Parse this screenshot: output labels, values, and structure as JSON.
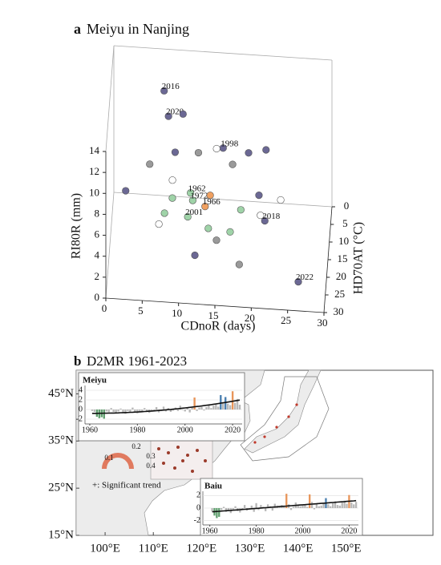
{
  "chart_data": [
    {
      "type": "scatter3d",
      "panel_label": "a",
      "title": "Meiyu in Nanjing",
      "x_label": "CDnoR (days)",
      "y_label": "RI80R (mm)",
      "z_label": "HD70AT (°C)",
      "xlim": [
        0,
        30
      ],
      "ylim": [
        0,
        14
      ],
      "zlim": [
        0,
        30
      ],
      "xticks": [
        0,
        5,
        10,
        15,
        20,
        25,
        30
      ],
      "yticks": [
        0,
        2,
        4,
        6,
        8,
        10,
        12,
        14
      ],
      "zticks": [
        0,
        5,
        10,
        15,
        20,
        25,
        30
      ],
      "points": [
        {
          "x": 7.1,
          "y": 11.7,
          "z": 5,
          "color": "#6b6894",
          "label": "2016",
          "label_color": "#5b5880"
        },
        {
          "x": 7.7,
          "y": 9.3,
          "z": 5,
          "color": "#6b6894",
          "label": "2020",
          "label_color": "#5b5880"
        },
        {
          "x": 9.7,
          "y": 9.6,
          "z": 5,
          "color": "#6b6894"
        },
        {
          "x": 15.4,
          "y": 8.3,
          "z": 10,
          "color": "#6b6894",
          "label": "1998",
          "label_color": "#5b5880"
        },
        {
          "x": 14.5,
          "y": 8.2,
          "z": 10,
          "color": "#ffffff"
        },
        {
          "x": 8.8,
          "y": 7.6,
          "z": 10,
          "color": "#6b6894"
        },
        {
          "x": 12.0,
          "y": 7.7,
          "z": 10,
          "color": "#9a9a9a"
        },
        {
          "x": 5.3,
          "y": 6.3,
          "z": 10,
          "color": "#9a9a9a"
        },
        {
          "x": 16.7,
          "y": 6.8,
          "z": 10,
          "color": "#9a9a9a"
        },
        {
          "x": 21.3,
          "y": 8.4,
          "z": 10,
          "color": "#6b6894"
        },
        {
          "x": 18.9,
          "y": 8.0,
          "z": 10,
          "color": "#6b6894"
        },
        {
          "x": 1.7,
          "y": 0.9,
          "z": 2,
          "color": "#6b6894"
        },
        {
          "x": 20.4,
          "y": 4.7,
          "z": 12,
          "color": "#6b6894"
        },
        {
          "x": 8.5,
          "y": 5.6,
          "z": 12,
          "color": "#ffffff"
        },
        {
          "x": 11.1,
          "y": 5.5,
          "z": 15,
          "color": "#9fd3a8",
          "label": "1962",
          "label_color": "#111111"
        },
        {
          "x": 11.4,
          "y": 4.8,
          "z": 15,
          "color": "#9fd3a8",
          "label": "1972",
          "label_color": "#111111"
        },
        {
          "x": 13.8,
          "y": 5.4,
          "z": 15,
          "color": "#f0a060"
        },
        {
          "x": 13.1,
          "y": 4.3,
          "z": 15,
          "color": "#f0a060",
          "label": "1966",
          "label_color": "#111111"
        },
        {
          "x": 8.6,
          "y": 4.9,
          "z": 15,
          "color": "#9fd3a8"
        },
        {
          "x": 23.5,
          "y": 5.4,
          "z": 15,
          "color": "#ffffff"
        },
        {
          "x": 10.9,
          "y": 4.9,
          "z": 20,
          "color": "#9fd3a8",
          "label": "2001",
          "label_color": "#c0392b"
        },
        {
          "x": 21.5,
          "y": 5.0,
          "z": 20,
          "color": "#6b6894",
          "label": "2018",
          "label_color": "#c0392b"
        },
        {
          "x": 18.2,
          "y": 5.9,
          "z": 20,
          "color": "#9fd3a8"
        },
        {
          "x": 7.7,
          "y": 5.1,
          "z": 20,
          "color": "#9fd3a8"
        },
        {
          "x": 20.9,
          "y": 5.5,
          "z": 20,
          "color": "#ffffff"
        },
        {
          "x": 16.8,
          "y": 4.4,
          "z": 22,
          "color": "#9fd3a8"
        },
        {
          "x": 13.8,
          "y": 4.6,
          "z": 22,
          "color": "#9fd3a8"
        },
        {
          "x": 7.0,
          "y": 4.7,
          "z": 22,
          "color": "#ffffff"
        },
        {
          "x": 15.0,
          "y": 4.2,
          "z": 24,
          "color": "#9a9a9a"
        },
        {
          "x": 12.1,
          "y": 3.3,
          "z": 26,
          "color": "#6b6894"
        },
        {
          "x": 18.2,
          "y": 2.7,
          "z": 26,
          "color": "#9a9a9a"
        },
        {
          "x": 26.4,
          "y": 2.1,
          "z": 28,
          "color": "#6b6894",
          "label": "2022",
          "label_color": "#c0392b"
        }
      ]
    },
    {
      "type": "map",
      "panel_label": "b",
      "title": "D2MR 1961-2023",
      "xlim": [
        94,
        168
      ],
      "ylim": [
        15,
        50
      ],
      "xticks": [
        {
          "value": 100,
          "label": "100°E"
        },
        {
          "value": 110,
          "label": "110°E"
        },
        {
          "value": 120,
          "label": "120°E"
        },
        {
          "value": 130,
          "label": "130°E"
        },
        {
          "value": 140,
          "label": "140°E"
        },
        {
          "value": 150,
          "label": "150°E"
        }
      ],
      "yticks": [
        {
          "value": 15,
          "label": "15°N"
        },
        {
          "value": 25,
          "label": "25°N"
        },
        {
          "value": 35,
          "label": "35°N"
        },
        {
          "value": 45,
          "label": "45°N"
        }
      ],
      "note": "+: Significant trend",
      "colorbar_ticks": [
        0.1,
        0.2,
        0.3,
        0.4
      ],
      "palette": {
        "gray": "#b8b8b8",
        "green": "#5f9e6e",
        "orange": "#e8955a",
        "blue": "#4a7fb0"
      },
      "insets": [
        {
          "type": "bar",
          "name": "Meiyu",
          "trend": "quadratic",
          "xlim": [
            1958,
            2024
          ],
          "ylim": [
            -3,
            5
          ],
          "xticks": [
            1960,
            1980,
            2000,
            2020
          ],
          "yticks": [
            -2,
            0,
            2,
            4
          ],
          "x": [
            1961,
            1962,
            1963,
            1964,
            1965,
            1966,
            1967,
            1968,
            1969,
            1970,
            1971,
            1972,
            1973,
            1974,
            1975,
            1976,
            1977,
            1978,
            1979,
            1980,
            1981,
            1982,
            1983,
            1984,
            1985,
            1986,
            1987,
            1988,
            1989,
            1990,
            1991,
            1992,
            1993,
            1994,
            1995,
            1996,
            1997,
            1998,
            1999,
            2000,
            2001,
            2002,
            2003,
            2004,
            2005,
            2006,
            2007,
            2008,
            2009,
            2010,
            2011,
            2012,
            2013,
            2014,
            2015,
            2016,
            2017,
            2018,
            2019,
            2020,
            2021,
            2022,
            2023
          ],
          "values": [
            -0.3,
            -0.5,
            -1.5,
            -1.8,
            -1.6,
            -1.9,
            -0.4,
            -0.6,
            0.3,
            -0.5,
            -0.8,
            -0.4,
            0.2,
            -0.6,
            -0.9,
            -0.3,
            -0.7,
            0.4,
            -0.5,
            -0.8,
            -0.4,
            -0.6,
            0.3,
            -0.5,
            -0.7,
            -0.2,
            -0.4,
            0.5,
            -0.6,
            -0.3,
            0.6,
            -0.4,
            0.3,
            -0.5,
            -0.2,
            0.4,
            -0.3,
            0.8,
            -0.1,
            -0.4,
            0.5,
            -0.6,
            0.7,
            2.5,
            -0.3,
            0.4,
            0.6,
            -0.2,
            0.5,
            1.0,
            0.3,
            0.8,
            1.2,
            0.6,
            3.0,
            1.5,
            2.6,
            1.2,
            0.9,
            3.8,
            1.4,
            2.2,
            1.0
          ],
          "bar_colors": [
            "gray",
            "gray",
            "green",
            "green",
            "green",
            "green",
            "gray",
            "gray",
            "gray",
            "gray",
            "gray",
            "gray",
            "gray",
            "gray",
            "gray",
            "gray",
            "gray",
            "gray",
            "gray",
            "gray",
            "gray",
            "gray",
            "gray",
            "gray",
            "gray",
            "gray",
            "gray",
            "gray",
            "gray",
            "gray",
            "gray",
            "gray",
            "gray",
            "gray",
            "gray",
            "gray",
            "gray",
            "gray",
            "gray",
            "gray",
            "gray",
            "gray",
            "gray",
            "orange",
            "gray",
            "gray",
            "gray",
            "gray",
            "gray",
            "gray",
            "gray",
            "gray",
            "gray",
            "gray",
            "blue",
            "gray",
            "blue",
            "gray",
            "gray",
            "orange",
            "gray",
            "gray",
            "gray"
          ]
        },
        {
          "type": "bar",
          "name": "Baiu",
          "trend": "linear",
          "xlim": [
            1957,
            2024
          ],
          "ylim": [
            -2.7,
            2.7
          ],
          "xticks": [
            1960,
            1980,
            2000,
            2020
          ],
          "yticks": [
            -2,
            0,
            2
          ],
          "x": [
            1961,
            1962,
            1963,
            1964,
            1965,
            1966,
            1967,
            1968,
            1969,
            1970,
            1971,
            1972,
            1973,
            1974,
            1975,
            1976,
            1977,
            1978,
            1979,
            1980,
            1981,
            1982,
            1983,
            1984,
            1985,
            1986,
            1987,
            1988,
            1989,
            1990,
            1991,
            1992,
            1993,
            1994,
            1995,
            1996,
            1997,
            1998,
            1999,
            2000,
            2001,
            2002,
            2003,
            2004,
            2005,
            2006,
            2007,
            2008,
            2009,
            2010,
            2011,
            2012,
            2013,
            2014,
            2015,
            2016,
            2017,
            2018,
            2019,
            2020,
            2021,
            2022,
            2023
          ],
          "values": [
            -0.5,
            -1.2,
            -1.6,
            -1.4,
            -0.3,
            0.2,
            -0.6,
            -0.4,
            -0.8,
            -0.2,
            0.3,
            -0.5,
            -0.7,
            -0.3,
            0.5,
            -0.4,
            -0.2,
            0.4,
            -0.6,
            0.8,
            -0.3,
            0.5,
            0.2,
            -0.5,
            0.6,
            0.3,
            -0.4,
            0.7,
            0.4,
            0.2,
            0.5,
            0.4,
            2.3,
            0.6,
            -0.3,
            0.2,
            0.9,
            0.5,
            0.3,
            0.4,
            0.6,
            0.2,
            2.2,
            1.0,
            -0.2,
            0.8,
            0.3,
            0.4,
            0.7,
            1.6,
            0.6,
            0.3,
            0.8,
            1.1,
            0.5,
            0.4,
            0.9,
            1.2,
            0.7,
            2.1,
            0.9,
            0.6,
            1.0
          ],
          "bar_colors": [
            "gray",
            "green",
            "green",
            "green",
            "gray",
            "gray",
            "gray",
            "gray",
            "gray",
            "gray",
            "gray",
            "gray",
            "gray",
            "gray",
            "gray",
            "gray",
            "gray",
            "gray",
            "gray",
            "gray",
            "gray",
            "gray",
            "gray",
            "gray",
            "gray",
            "gray",
            "gray",
            "gray",
            "gray",
            "gray",
            "gray",
            "gray",
            "orange",
            "gray",
            "gray",
            "gray",
            "gray",
            "gray",
            "gray",
            "gray",
            "gray",
            "gray",
            "orange",
            "gray",
            "gray",
            "gray",
            "gray",
            "gray",
            "gray",
            "blue",
            "gray",
            "gray",
            "gray",
            "gray",
            "gray",
            "gray",
            "gray",
            "gray",
            "gray",
            "orange",
            "gray",
            "gray",
            "gray"
          ]
        }
      ]
    }
  ]
}
